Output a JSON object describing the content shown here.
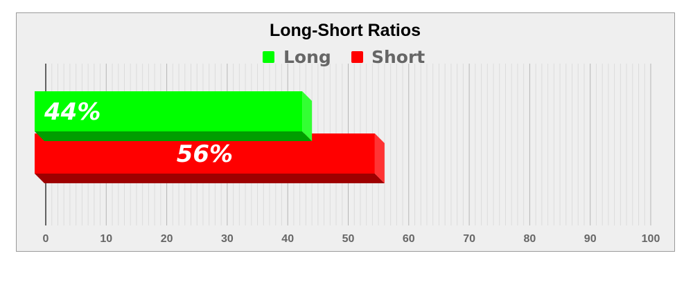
{
  "chart_data": {
    "type": "bar",
    "orientation": "horizontal",
    "style": "3d",
    "title": "Long-Short Ratios",
    "legend_position": "top",
    "series": [
      {
        "name": "Long",
        "values": [
          44
        ],
        "color": "#00ff00",
        "label": "44%"
      },
      {
        "name": "Short",
        "values": [
          56
        ],
        "color": "#ff0000",
        "label": "56%"
      }
    ],
    "xlim": [
      0,
      100
    ],
    "xticks": [
      "0",
      "10",
      "20",
      "30",
      "40",
      "50",
      "60",
      "70",
      "80",
      "90",
      "100"
    ],
    "xlabel": "",
    "ylabel": "",
    "grid": true,
    "background": "#efefef"
  }
}
